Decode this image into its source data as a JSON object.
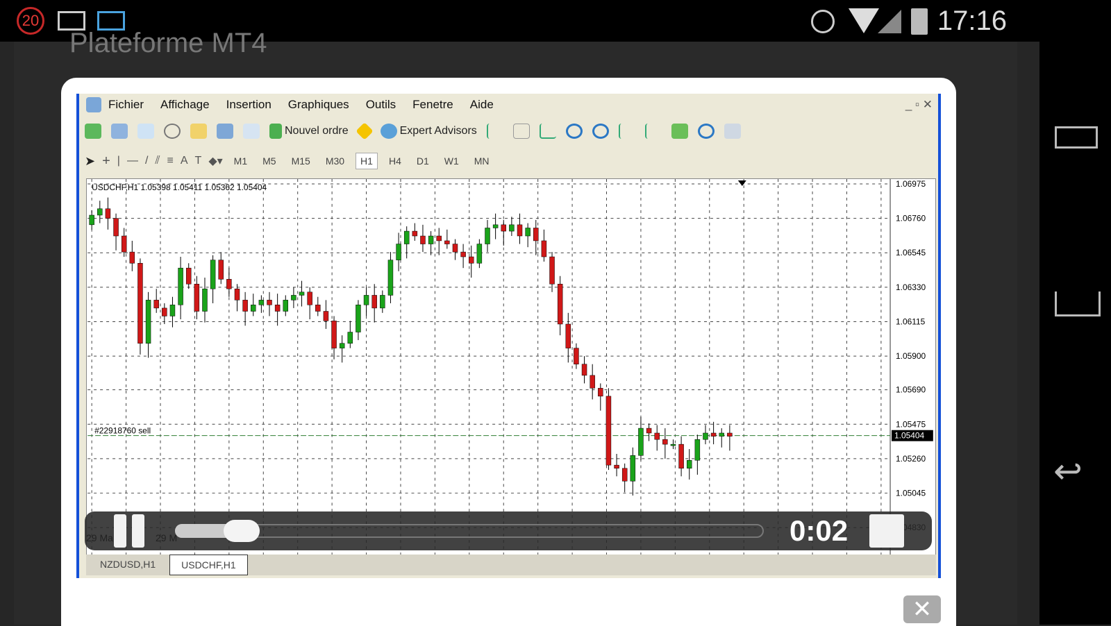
{
  "status_bar": {
    "notification_count": "20",
    "time": "17:16",
    "icons": [
      "gmail-icon",
      "email-icon",
      "alarm-icon",
      "wifi-icon",
      "signal-icon",
      "battery-charging-icon"
    ]
  },
  "background_title": "Plateforme MT4",
  "app": {
    "menu": [
      "Fichier",
      "Affichage",
      "Insertion",
      "Graphiques",
      "Outils",
      "Fenetre",
      "Aide"
    ],
    "toolbar": {
      "new_order": "Nouvel ordre",
      "expert_advisors": "Expert Advisors"
    },
    "timeframes": [
      "M1",
      "M5",
      "M15",
      "M30",
      "H1",
      "H4",
      "D1",
      "W1",
      "MN"
    ],
    "selected_timeframe": "H1",
    "tabs": [
      "NZDUSD,H1",
      "USDCHF,H1"
    ],
    "active_tab": "USDCHF,H1",
    "date_labels": [
      "29 Ma",
      "29 M"
    ]
  },
  "chart_data": {
    "type": "candlestick",
    "title": "USDCHF,H1  1.05398 1.05411 1.05362 1.05404",
    "y_ticks": [
      "1.06975",
      "1.06760",
      "1.06545",
      "1.06330",
      "1.06115",
      "1.05900",
      "1.05690",
      "1.05475",
      "1.05260",
      "1.05045",
      "1.04830"
    ],
    "ylim": [
      1.0483,
      1.06975
    ],
    "current_price": "1.05404",
    "order_label": "#22918760 sell",
    "order_price": 1.05404,
    "first_open": 1.0672,
    "close": [
      1.0678,
      1.0682,
      1.0676,
      1.0665,
      1.0655,
      1.0648,
      1.0598,
      1.0625,
      1.062,
      1.0615,
      1.0622,
      1.0645,
      1.0635,
      1.0618,
      1.0632,
      1.065,
      1.0638,
      1.0632,
      1.0625,
      1.0618,
      1.0622,
      1.0625,
      1.0622,
      1.0618,
      1.0625,
      1.0628,
      1.063,
      1.0622,
      1.0618,
      1.0612,
      1.0595,
      1.0598,
      1.0605,
      1.0622,
      1.0628,
      1.062,
      1.0628,
      1.065,
      1.066,
      1.0668,
      1.0665,
      1.066,
      1.0665,
      1.0662,
      1.066,
      1.0655,
      1.0652,
      1.0648,
      1.066,
      1.067,
      1.0672,
      1.0668,
      1.0672,
      1.0665,
      1.067,
      1.0662,
      1.0652,
      1.0635,
      1.061,
      1.0595,
      1.0585,
      1.0578,
      1.057,
      1.0565,
      1.0522,
      1.052,
      1.0512,
      1.0528,
      1.0545,
      1.0542,
      1.0538,
      1.0535,
      1.0535,
      1.052,
      1.0525,
      1.0538,
      1.0542,
      1.054,
      1.0542,
      1.054
    ],
    "colors": {
      "up": "#1aa31a",
      "down": "#d01818",
      "order_line": "#2e7d32"
    },
    "grid": true
  },
  "video": {
    "time": "0:02",
    "progress": 0.05,
    "state": "playing"
  }
}
